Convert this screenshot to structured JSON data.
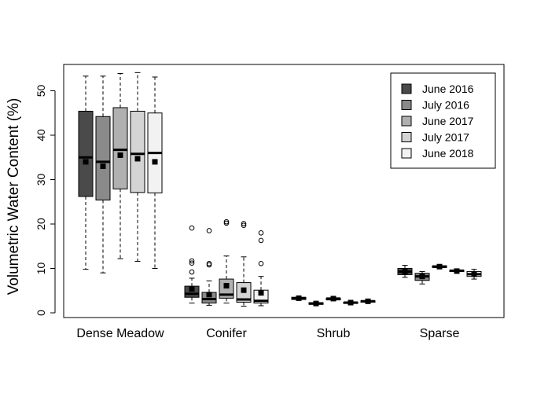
{
  "chart_data": {
    "type": "boxplot",
    "ylabel": "Volumetric Water Content (%)",
    "ylim": [
      0,
      55
    ],
    "yticks": [
      0,
      10,
      20,
      30,
      40,
      50
    ],
    "categories": [
      "Dense Meadow",
      "Conifer",
      "Shrub",
      "Sparse"
    ],
    "legend_position": "top-right",
    "series": [
      {
        "name": "June 2016",
        "color": "#4a4a4a"
      },
      {
        "name": "July 2016",
        "color": "#8a8a8a"
      },
      {
        "name": "June 2017",
        "color": "#b0b0b0"
      },
      {
        "name": "July 2017",
        "color": "#d4d4d4"
      },
      {
        "name": "June 2018",
        "color": "#f2f2f2"
      }
    ],
    "boxes": [
      [
        {
          "min": 9.8,
          "q1": 26.2,
          "median": 35.0,
          "q3": 45.4,
          "max": 53.3,
          "mean": 34.0,
          "outliers": []
        },
        {
          "min": 9.0,
          "q1": 25.4,
          "median": 34.0,
          "q3": 44.2,
          "max": 53.3,
          "mean": 33.0,
          "outliers": []
        },
        {
          "min": 12.2,
          "q1": 27.9,
          "median": 36.7,
          "q3": 46.2,
          "max": 53.9,
          "mean": 35.5,
          "outliers": []
        },
        {
          "min": 11.6,
          "q1": 27.1,
          "median": 35.8,
          "q3": 45.4,
          "max": 54.1,
          "mean": 34.7,
          "outliers": []
        },
        {
          "min": 10.0,
          "q1": 27.0,
          "median": 36.0,
          "q3": 45.0,
          "max": 53.1,
          "mean": 34.0,
          "outliers": []
        }
      ],
      [
        {
          "min": 2.2,
          "q1": 3.5,
          "median": 4.3,
          "q3": 6.0,
          "max": 7.8,
          "mean": 5.4,
          "outliers": [
            9.2,
            11.2,
            11.7,
            19.1
          ]
        },
        {
          "min": 1.7,
          "q1": 2.2,
          "median": 3.1,
          "q3": 4.6,
          "max": 7.2,
          "mean": 4.1,
          "outliers": [
            10.8,
            11.1,
            18.5
          ]
        },
        {
          "min": 2.2,
          "q1": 3.3,
          "median": 4.1,
          "q3": 7.6,
          "max": 12.8,
          "mean": 6.1,
          "outliers": [
            20.2,
            20.5
          ]
        },
        {
          "min": 1.5,
          "q1": 2.4,
          "median": 3.0,
          "q3": 6.8,
          "max": 12.6,
          "mean": 5.1,
          "outliers": [
            19.7,
            20.1
          ]
        },
        {
          "min": 1.6,
          "q1": 2.2,
          "median": 2.7,
          "q3": 5.1,
          "max": 8.2,
          "mean": 4.5,
          "outliers": [
            11.1,
            16.3,
            18.0
          ]
        }
      ],
      [
        {
          "min": 2.9,
          "q1": 3.0,
          "median": 3.3,
          "q3": 3.5,
          "max": 3.7,
          "mean": 3.3,
          "outliers": []
        },
        {
          "min": 1.8,
          "q1": 1.9,
          "median": 2.1,
          "q3": 2.3,
          "max": 2.5,
          "mean": 2.1,
          "outliers": []
        },
        {
          "min": 2.8,
          "q1": 2.9,
          "median": 3.2,
          "q3": 3.3,
          "max": 3.4,
          "mean": 3.2,
          "outliers": []
        },
        {
          "min": 2.0,
          "q1": 2.1,
          "median": 2.3,
          "q3": 2.4,
          "max": 2.5,
          "mean": 2.3,
          "outliers": []
        },
        {
          "min": 2.3,
          "q1": 2.4,
          "median": 2.6,
          "q3": 2.7,
          "max": 2.8,
          "mean": 2.6,
          "outliers": []
        }
      ],
      [
        {
          "min": 8.0,
          "q1": 8.6,
          "median": 9.3,
          "q3": 10.0,
          "max": 10.7,
          "mean": 9.3,
          "outliers": []
        },
        {
          "min": 6.5,
          "q1": 7.3,
          "median": 8.2,
          "q3": 8.9,
          "max": 9.3,
          "mean": 8.2,
          "outliers": []
        },
        {
          "min": 10.1,
          "q1": 10.2,
          "median": 10.4,
          "q3": 10.6,
          "max": 10.7,
          "mean": 10.4,
          "outliers": []
        },
        {
          "min": 9.2,
          "q1": 9.3,
          "median": 9.5,
          "q3": 9.6,
          "max": 9.7,
          "mean": 9.4,
          "outliers": []
        },
        {
          "min": 7.6,
          "q1": 8.2,
          "median": 8.7,
          "q3": 9.3,
          "max": 9.8,
          "mean": 8.7,
          "outliers": []
        }
      ]
    ]
  }
}
